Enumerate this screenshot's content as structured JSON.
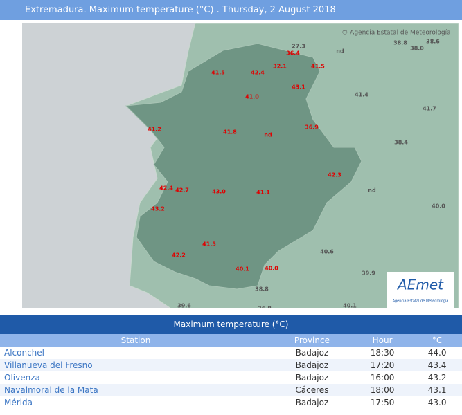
{
  "header": {
    "title": "Extremadura. Maximum temperature (°C) . Thursday, 2 August 2018"
  },
  "map": {
    "credit": "© Agencia Estatal de Meteorología",
    "logo": {
      "name": "AEmet",
      "subtitle": "Agencia Estatal de Meteorología"
    },
    "labels": {
      "region": [
        "36.4",
        "32.1",
        "41.5",
        "41.5",
        "42.4",
        "43.1",
        "41.0",
        "41.2",
        "41.8",
        "nd",
        "36.9",
        "42.3",
        "42.4",
        "42.7",
        "43.0",
        "41.1",
        "43.2",
        "41.5",
        "42.2",
        "40.1",
        "40.0"
      ],
      "other": [
        "27.3",
        "nd",
        "38.8",
        "38.0",
        "38.6",
        "41.4",
        "41.7",
        "38.4",
        "nd",
        "40.0",
        "40.6",
        "39.9",
        "38.8",
        "39.6",
        "36.8",
        "40.1"
      ]
    }
  },
  "table": {
    "title": "Maximum temperature (°C)",
    "columns": [
      "Station",
      "Province",
      "Hour",
      "°C"
    ],
    "rows": [
      [
        "Alconchel",
        "Badajoz",
        "18:30",
        "44.0"
      ],
      [
        "Villanueva del Fresno",
        "Badajoz",
        "17:20",
        "43.4"
      ],
      [
        "Olivenza",
        "Badajoz",
        "16:00",
        "43.2"
      ],
      [
        "Navalmoral de la Mata",
        "Cáceres",
        "18:00",
        "43.1"
      ],
      [
        "Mérida",
        "Badajoz",
        "17:50",
        "43.0"
      ]
    ]
  }
}
